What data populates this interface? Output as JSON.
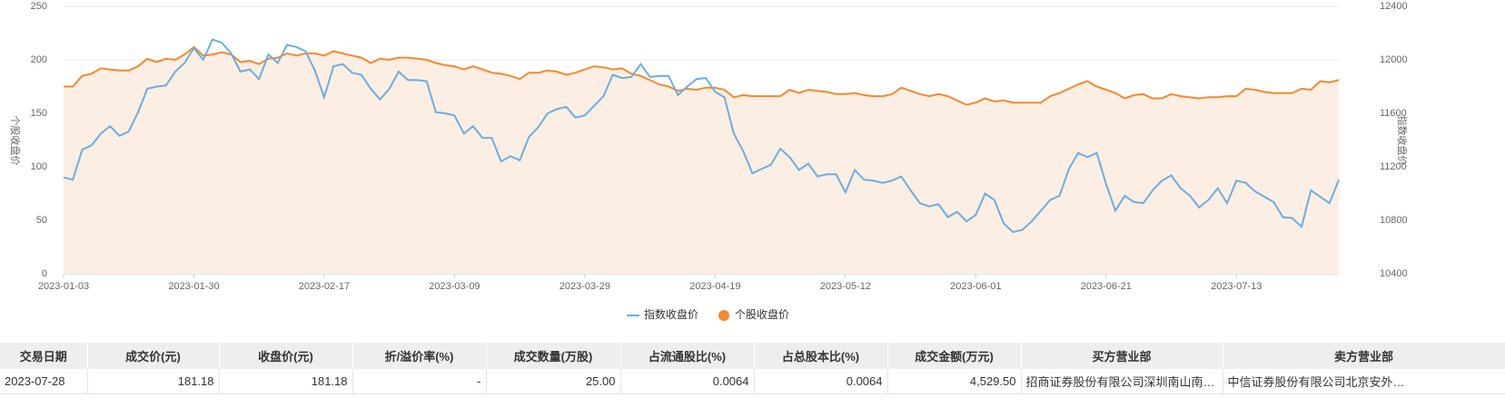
{
  "chart_data": {
    "type": "line",
    "y_label": "个股收盘价",
    "y2_label": "指数收盘价",
    "categories": [
      "2023-01-03",
      null,
      null,
      null,
      null,
      null,
      null,
      null,
      null,
      null,
      null,
      null,
      null,
      null,
      "2023-01-30",
      null,
      null,
      null,
      null,
      null,
      null,
      null,
      null,
      null,
      null,
      null,
      null,
      null,
      "2023-02-17",
      null,
      null,
      null,
      null,
      null,
      null,
      null,
      null,
      null,
      null,
      null,
      null,
      null,
      "2023-03-09",
      null,
      null,
      null,
      null,
      null,
      null,
      null,
      null,
      null,
      null,
      null,
      null,
      null,
      "2023-03-29",
      null,
      null,
      null,
      null,
      null,
      null,
      null,
      null,
      null,
      null,
      null,
      null,
      null,
      "2023-04-19",
      null,
      null,
      null,
      null,
      null,
      null,
      null,
      null,
      null,
      null,
      null,
      null,
      null,
      "2023-05-12",
      null,
      null,
      null,
      null,
      null,
      null,
      null,
      null,
      null,
      null,
      null,
      null,
      null,
      "2023-06-01",
      null,
      null,
      null,
      null,
      null,
      null,
      null,
      null,
      null,
      null,
      null,
      null,
      null,
      "2023-06-21",
      null,
      null,
      null,
      null,
      null,
      null,
      null,
      null,
      null,
      null,
      null,
      null,
      null,
      "2023-07-13",
      null,
      null,
      null,
      null,
      null,
      null,
      null,
      null,
      null,
      null,
      null
    ],
    "series": [
      {
        "name": "指数收盘价",
        "color": "#6aaee0",
        "axis": "y2",
        "values": [
          11120,
          11104,
          11328,
          11360,
          11448,
          11504,
          11432,
          11464,
          11608,
          11784,
          11800,
          11808,
          11912,
          11976,
          12088,
          12000,
          12152,
          12128,
          12048,
          11912,
          11928,
          11856,
          12040,
          11976,
          12112,
          12096,
          12064,
          11920,
          11720,
          11952,
          11968,
          11904,
          11888,
          11784,
          11704,
          11784,
          11912,
          11848,
          11848,
          11840,
          11608,
          11600,
          11584,
          11448,
          11504,
          11416,
          11416,
          11240,
          11280,
          11248,
          11424,
          11496,
          11600,
          11632,
          11648,
          11568,
          11584,
          11656,
          11728,
          11888,
          11864,
          11872,
          11968,
          11872,
          11880,
          11880,
          11736,
          11800,
          11856,
          11864,
          11760,
          11720,
          11448,
          11320,
          11152,
          11184,
          11216,
          11336,
          11272,
          11176,
          11224,
          11128,
          11144,
          11144,
          11008,
          11176,
          11104,
          11096,
          11080,
          11096,
          11128,
          11024,
          10928,
          10904,
          10920,
          10824,
          10864,
          10792,
          10840,
          11000,
          10952,
          10776,
          10712,
          10728,
          10792,
          10872,
          10952,
          10984,
          11184,
          11304,
          11272,
          11304,
          11072,
          10872,
          10984,
          10936,
          10928,
          11024,
          11096,
          11136,
          11040,
          10984,
          10896,
          10952,
          11040,
          10928,
          11096,
          11080,
          11016,
          10976,
          10936,
          10824,
          10816,
          10752,
          11024,
          10976,
          10928,
          11104
        ]
      },
      {
        "name": "个股收盘价",
        "color": "#f28a2d",
        "fill": "#fdeee3",
        "values": [
          175,
          175,
          185,
          187,
          192,
          191,
          190,
          190,
          194,
          201,
          198,
          201,
          200,
          205,
          212,
          204,
          205,
          207,
          205,
          198,
          199,
          196,
          201,
          202,
          206,
          204,
          206,
          206,
          204,
          208,
          206,
          204,
          202,
          197,
          201,
          200,
          202,
          202,
          201,
          200,
          197,
          195,
          194,
          191,
          194,
          191,
          188,
          187,
          185,
          182,
          188,
          188,
          190,
          189,
          186,
          188,
          191,
          194,
          193,
          191,
          192,
          187,
          185,
          181,
          177,
          175,
          171,
          173,
          172,
          174,
          174,
          172,
          165,
          167,
          166,
          166,
          166,
          166,
          172,
          169,
          172,
          171,
          170,
          168,
          168,
          169,
          167,
          166,
          166,
          168,
          174,
          171,
          168,
          166,
          168,
          166,
          162,
          158,
          160,
          164,
          161,
          162,
          160,
          160,
          160,
          160,
          166,
          169,
          173,
          177,
          180,
          175,
          172,
          169,
          164,
          167,
          168,
          164,
          164,
          168,
          166,
          165,
          164,
          165,
          165,
          166,
          166,
          173,
          172,
          170,
          169,
          169,
          169,
          173,
          172,
          180,
          179,
          181.18
        ]
      }
    ],
    "ylim": [
      0,
      250
    ],
    "yticks": [
      0,
      50,
      100,
      150,
      200,
      250
    ],
    "y2lim": [
      10400,
      12400
    ],
    "y2ticks": [
      10400,
      10800,
      11200,
      11600,
      12000,
      12400
    ],
    "grid": true,
    "legend": "bottom"
  },
  "table": {
    "headers": [
      "交易日期",
      "成交价(元)",
      "收盘价(元)",
      "折/溢价率(%)",
      "成交数量(万股)",
      "占流通股比(%)",
      "占总股本比(%)",
      "成交金额(万元)",
      "买方营业部",
      "卖方营业部"
    ],
    "rows": [
      [
        "2023-07-28",
        "181.18",
        "181.18",
        "-",
        "25.00",
        "0.0064",
        "0.0064",
        "4,529.50",
        "招商证券股份有限公司深圳南山南…",
        "中信证券股份有限公司北京安外…"
      ]
    ]
  }
}
